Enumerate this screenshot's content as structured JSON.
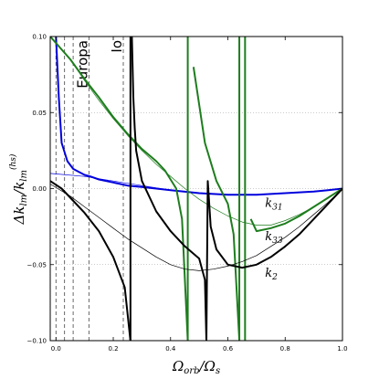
{
  "chart_data": {
    "type": "line",
    "xlabel": "Ω_orb/Ω_s",
    "xlabel_main": "Ω",
    "xlabel_sub1": "orb",
    "xlabel_sep": "/Ω",
    "xlabel_sub2": "s",
    "ylabel": "Δk_lm/k_lm^(hs)",
    "ylabel_main": "Δk",
    "ylabel_sub": "lm",
    "ylabel_sep": "/k",
    "ylabel_sub2": "lm",
    "ylabel_sup": "(hs)",
    "xlim": [
      -0.02,
      1.0
    ],
    "ylim": [
      -0.1,
      0.1
    ],
    "xticks": [
      "0.0",
      "0.2",
      "0.4",
      "0.6",
      "0.8",
      "1.0"
    ],
    "yticks": [
      "0.10",
      "0.05",
      "0.00",
      "−0.05",
      "−0.10"
    ],
    "ytick_values": [
      0.1,
      0.05,
      0.0,
      -0.05,
      -0.1
    ],
    "xtick_values": [
      0.0,
      0.2,
      0.4,
      0.6,
      0.8,
      1.0
    ],
    "grid": "horizontal dotted at y = 0.05, 0.00, -0.05",
    "moon_lines": [
      0.0,
      0.03,
      0.06,
      0.115,
      0.235
    ],
    "moon_labels": [
      {
        "text": "Europa",
        "x": 0.115
      },
      {
        "text": "Io",
        "x": 0.235
      }
    ],
    "curve_labels": [
      {
        "text": "k",
        "sub": "31",
        "x": 0.73,
        "y": -0.012
      },
      {
        "text": "k",
        "sub": "33",
        "x": 0.73,
        "y": -0.034
      },
      {
        "text": "k",
        "sub": "2",
        "x": 0.73,
        "y": -0.058
      }
    ],
    "series": [
      {
        "name": "k31",
        "color": "#0000dd",
        "style": "resonant",
        "x": [
          0.0,
          0.01,
          0.02,
          0.04,
          0.06,
          0.08,
          0.1,
          0.12,
          0.15,
          0.2,
          0.25,
          0.3,
          0.4,
          0.5,
          0.6,
          0.7,
          0.8,
          0.9,
          0.95,
          1.0
        ],
        "y": [
          0.1,
          0.06,
          0.03,
          0.018,
          0.013,
          0.011,
          0.009,
          0.008,
          0.006,
          0.004,
          0.002,
          0.001,
          -0.001,
          -0.003,
          -0.004,
          -0.004,
          -0.003,
          -0.002,
          -0.001,
          0.0
        ]
      },
      {
        "name": "k31 (smooth)",
        "color": "#0000dd",
        "style": "thin",
        "x": [
          -0.02,
          0.1,
          0.2,
          0.3,
          0.4,
          0.5,
          0.6,
          0.7,
          0.8,
          0.9,
          1.0
        ],
        "y": [
          0.01,
          0.008,
          0.005,
          0.002,
          -0.001,
          -0.003,
          -0.004,
          -0.004,
          -0.003,
          -0.002,
          0.0
        ]
      },
      {
        "name": "k33",
        "color": "#1e7d1e",
        "style": "resonant",
        "x": [
          -0.02,
          0.05,
          0.1,
          0.15,
          0.2,
          0.25,
          0.3,
          0.35,
          0.38,
          0.42,
          0.44,
          0.46,
          0.48,
          0.52,
          0.56,
          0.6,
          0.62,
          0.64,
          0.66,
          0.68,
          0.7,
          0.75,
          0.8,
          0.85,
          0.9,
          0.95,
          1.0
        ],
        "y": [
          0.1,
          0.085,
          0.072,
          0.06,
          0.047,
          0.036,
          0.026,
          0.018,
          0.012,
          0.0,
          -0.02,
          -0.1,
          0.08,
          0.03,
          0.005,
          -0.01,
          -0.03,
          -0.1,
          0.1,
          -0.02,
          -0.028,
          -0.026,
          -0.023,
          -0.018,
          -0.012,
          -0.006,
          0.0
        ]
      },
      {
        "name": "k33 (smooth)",
        "color": "#1e7d1e",
        "style": "thin",
        "x": [
          -0.02,
          0.05,
          0.1,
          0.15,
          0.2,
          0.25,
          0.3,
          0.35,
          0.4,
          0.45,
          0.5,
          0.55,
          0.6,
          0.65,
          0.7,
          0.75,
          0.8,
          0.85,
          0.9,
          0.95,
          1.0
        ],
        "y": [
          0.1,
          0.085,
          0.071,
          0.058,
          0.046,
          0.035,
          0.025,
          0.016,
          0.008,
          0.0,
          -0.007,
          -0.013,
          -0.018,
          -0.022,
          -0.024,
          -0.024,
          -0.021,
          -0.017,
          -0.012,
          -0.006,
          0.0
        ]
      },
      {
        "name": "k2",
        "color": "#000000",
        "style": "resonant",
        "x": [
          -0.02,
          0.02,
          0.05,
          0.1,
          0.15,
          0.2,
          0.24,
          0.26,
          0.265,
          0.27,
          0.275,
          0.28,
          0.3,
          0.35,
          0.4,
          0.45,
          0.5,
          0.52,
          0.525,
          0.53,
          0.54,
          0.56,
          0.6,
          0.65,
          0.7,
          0.75,
          0.8,
          0.85,
          0.9,
          0.95,
          1.0
        ],
        "y": [
          0.005,
          0.0,
          -0.006,
          -0.016,
          -0.028,
          -0.045,
          -0.065,
          -0.1,
          0.1,
          0.06,
          0.04,
          0.025,
          0.005,
          -0.015,
          -0.028,
          -0.038,
          -0.046,
          -0.06,
          -0.1,
          0.005,
          -0.025,
          -0.04,
          -0.05,
          -0.052,
          -0.05,
          -0.045,
          -0.038,
          -0.03,
          -0.02,
          -0.01,
          0.0
        ]
      },
      {
        "name": "k2 (smooth)",
        "color": "#000000",
        "style": "thin",
        "x": [
          -0.02,
          0.05,
          0.1,
          0.15,
          0.2,
          0.25,
          0.3,
          0.35,
          0.4,
          0.45,
          0.5,
          0.55,
          0.6,
          0.65,
          0.7,
          0.75,
          0.8,
          0.85,
          0.9,
          0.95,
          1.0
        ],
        "y": [
          0.003,
          -0.005,
          -0.012,
          -0.019,
          -0.026,
          -0.033,
          -0.039,
          -0.045,
          -0.05,
          -0.053,
          -0.054,
          -0.053,
          -0.051,
          -0.048,
          -0.044,
          -0.038,
          -0.032,
          -0.025,
          -0.017,
          -0.009,
          0.0
        ]
      }
    ]
  }
}
